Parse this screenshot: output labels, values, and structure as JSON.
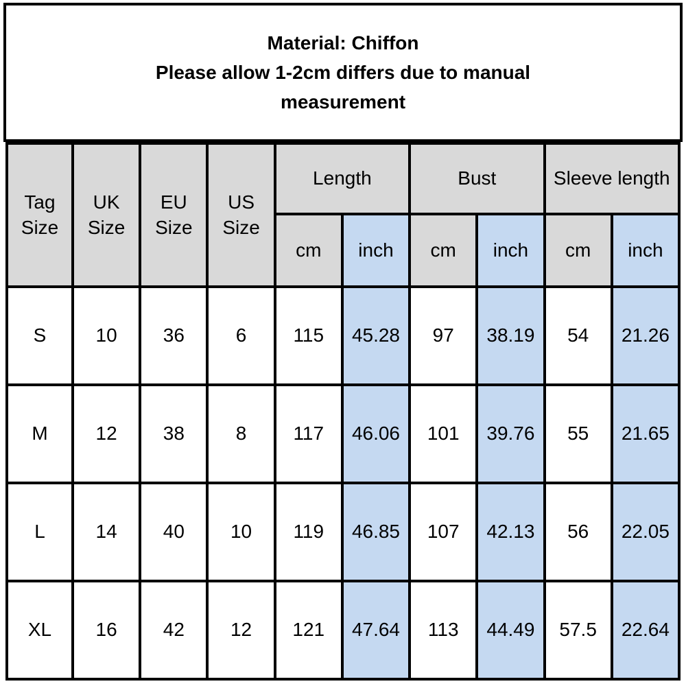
{
  "title": {
    "material": "Material: Chiffon",
    "note": "Please allow 1-2cm differs due to manual measurement"
  },
  "colors": {
    "border": "#000000",
    "header_bg": "#d9d9d9",
    "inch_highlight_bg": "#c5d9f1",
    "text": "#000000",
    "background": "#ffffff"
  },
  "chart_data": {
    "type": "table",
    "title": "Material: Chiffon",
    "subtitle": "Please allow 1-2cm differs due to manual measurement",
    "group_headers": {
      "tag": "Tag Size",
      "uk": "UK Size",
      "eu": "EU Size",
      "us": "US Size",
      "length": "Length",
      "bust": "Bust",
      "sleeve": "Sleeve length"
    },
    "unit_headers": {
      "cm": "cm",
      "inch": "inch"
    },
    "columns": [
      "Tag Size",
      "UK Size",
      "EU Size",
      "US Size",
      "Length cm",
      "Length inch",
      "Bust cm",
      "Bust inch",
      "Sleeve length cm",
      "Sleeve length inch"
    ],
    "rows": [
      [
        "S",
        "10",
        "36",
        "6",
        "115",
        "45.28",
        "97",
        "38.19",
        "54",
        "21.26"
      ],
      [
        "M",
        "12",
        "38",
        "8",
        "117",
        "46.06",
        "101",
        "39.76",
        "55",
        "21.65"
      ],
      [
        "L",
        "14",
        "40",
        "10",
        "119",
        "46.85",
        "107",
        "42.13",
        "56",
        "22.05"
      ],
      [
        "XL",
        "16",
        "42",
        "12",
        "121",
        "47.64",
        "113",
        "44.49",
        "57.5",
        "22.64"
      ]
    ]
  }
}
